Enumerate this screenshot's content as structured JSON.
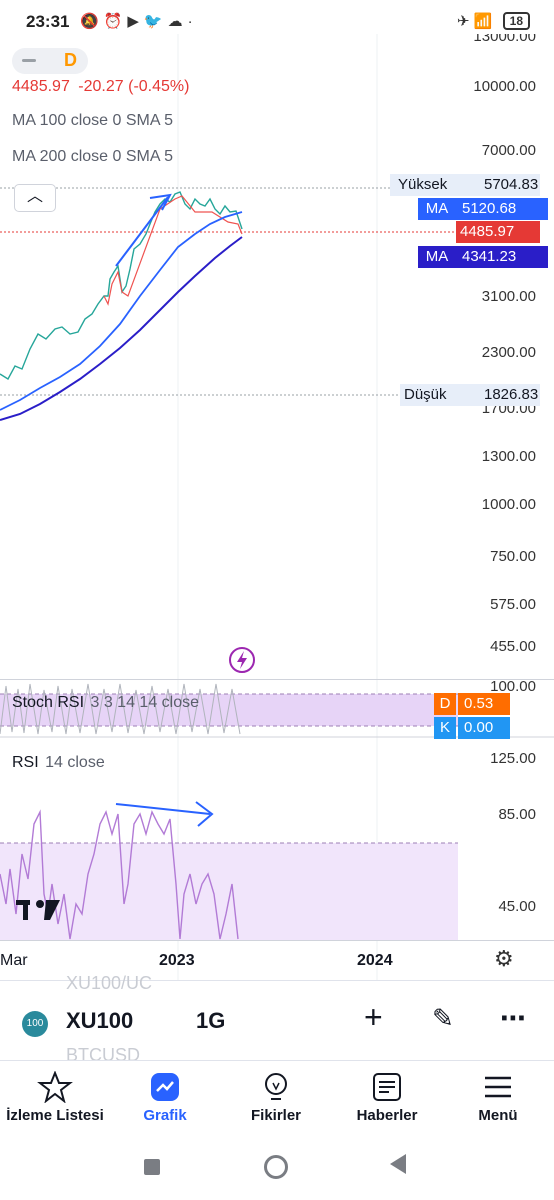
{
  "status_bar": {
    "time": "23:31",
    "battery": "18"
  },
  "chart": {
    "y_axis_labels": [
      "13000.00",
      "10000.00",
      "7000.00",
      "3100.00",
      "2300.00",
      "1700.00",
      "1300.00",
      "1000.00",
      "750.00",
      "575.00",
      "455.00"
    ],
    "legend": {
      "price": "4485.97",
      "change": "-20.27 (-0.45%)",
      "ma100": "MA 100 close 0 SMA 5",
      "ma200": "MA 200 close 0 SMA 5"
    },
    "interval_badge": "D",
    "high": {
      "label": "Yüksek",
      "value": "5704.83"
    },
    "low": {
      "label": "Düşük",
      "value": "1826.83"
    },
    "ma100_tag": {
      "label": "MA",
      "value": "5120.68"
    },
    "price_tag": {
      "value": "4485.97"
    },
    "ma200_tag": {
      "label": "MA",
      "value": "4341.23"
    },
    "colors": {
      "down": "#e53935",
      "ma100": "#2962ff",
      "ma200": "#2a1ec8",
      "rsi": "#b27bd6",
      "tag_blue": "#2962ff",
      "tag_orange": "#ff6d00",
      "tag_lightblue": "#2196f3"
    }
  },
  "stoch_rsi": {
    "label": "Stoch RSI",
    "params": "3 3 14 14 close",
    "top_label": "100.00",
    "d_label": "D",
    "d_value": "0.53",
    "k_label": "K",
    "k_value": "0.00"
  },
  "rsi": {
    "label": "RSI",
    "params": "14 close",
    "y_axis_labels": [
      "125.00",
      "85.00",
      "45.00"
    ]
  },
  "time_axis": [
    "Mar",
    "2023",
    "2024"
  ],
  "toolbar": {
    "symbol": "XU100",
    "interval": "1G",
    "ghost_top": "XU100/UC",
    "ghost_bottom": "BTCUSD"
  },
  "bottom_nav": [
    {
      "label": "İzleme Listesi",
      "icon": "star-icon"
    },
    {
      "label": "Grafik",
      "icon": "chart-icon"
    },
    {
      "label": "Fikirler",
      "icon": "lightbulb-icon"
    },
    {
      "label": "Haberler",
      "icon": "news-icon"
    },
    {
      "label": "Menü",
      "icon": "hamburger-icon"
    }
  ]
}
